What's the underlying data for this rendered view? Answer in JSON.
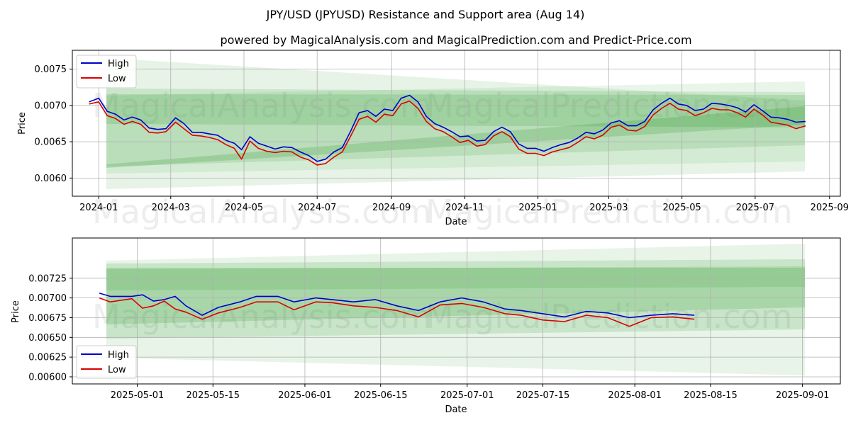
{
  "title": "JPY/USD (JPYUSD) Resistance and Support area (Aug 14)",
  "subtitle": "powered by MagicalAnalysis.com and MagicalPrediction.com and Predict-Price.com",
  "watermarks": {
    "top": [
      "MagicalAnalysis.com",
      "MagicalPrediction.com"
    ],
    "bottom": [
      "MagicalAnalysis.com",
      "MagicalPrediction.com"
    ]
  },
  "colors": {
    "high": "#0000cc",
    "low": "#dd0000",
    "band": "#2e9c2e",
    "grid": "#b0b0b0"
  },
  "chart_data": [
    {
      "type": "line",
      "xlabel": "Date",
      "ylabel": "Price",
      "xlim": [
        "2023-12-10",
        "2025-09-10"
      ],
      "ylim": [
        0.00575,
        0.00776
      ],
      "xticks": [
        "2024-01",
        "2024-03",
        "2024-05",
        "2024-07",
        "2024-09",
        "2024-11",
        "2025-01",
        "2025-03",
        "2025-05",
        "2025-07",
        "2025-09"
      ],
      "xtick_dates": [
        "2024-01-01",
        "2024-03-01",
        "2024-05-01",
        "2024-07-01",
        "2024-09-01",
        "2024-11-01",
        "2025-01-01",
        "2025-03-01",
        "2025-05-01",
        "2025-07-01",
        "2025-09-01"
      ],
      "yticks": [
        "0.0060",
        "0.0065",
        "0.0070",
        "0.0075"
      ],
      "ytick_values": [
        0.006,
        0.0065,
        0.007,
        0.0075
      ],
      "grid": true,
      "legend": "upper left",
      "series": [
        {
          "name": "High",
          "x": [
            "2023-12-24",
            "2024-01-01",
            "2024-01-08",
            "2024-01-15",
            "2024-01-22",
            "2024-01-29",
            "2024-02-05",
            "2024-02-12",
            "2024-02-19",
            "2024-02-26",
            "2024-03-05",
            "2024-03-12",
            "2024-03-19",
            "2024-03-26",
            "2024-04-02",
            "2024-04-09",
            "2024-04-16",
            "2024-04-23",
            "2024-04-29",
            "2024-05-06",
            "2024-05-13",
            "2024-05-20",
            "2024-05-27",
            "2024-06-03",
            "2024-06-10",
            "2024-06-17",
            "2024-06-24",
            "2024-07-01",
            "2024-07-08",
            "2024-07-15",
            "2024-07-22",
            "2024-07-29",
            "2024-08-05",
            "2024-08-12",
            "2024-08-19",
            "2024-08-26",
            "2024-09-02",
            "2024-09-09",
            "2024-09-16",
            "2024-09-23",
            "2024-09-30",
            "2024-10-07",
            "2024-10-14",
            "2024-10-21",
            "2024-10-28",
            "2024-11-04",
            "2024-11-11",
            "2024-11-18",
            "2024-11-25",
            "2024-12-02",
            "2024-12-09",
            "2024-12-16",
            "2024-12-23",
            "2024-12-30",
            "2025-01-06",
            "2025-01-13",
            "2025-01-20",
            "2025-01-27",
            "2025-02-03",
            "2025-02-10",
            "2025-02-17",
            "2025-02-24",
            "2025-03-03",
            "2025-03-10",
            "2025-03-17",
            "2025-03-24",
            "2025-03-31",
            "2025-04-07",
            "2025-04-14",
            "2025-04-21",
            "2025-04-28",
            "2025-05-05",
            "2025-05-12",
            "2025-05-19",
            "2025-05-26",
            "2025-06-02",
            "2025-06-09",
            "2025-06-16",
            "2025-06-23",
            "2025-06-30",
            "2025-07-07",
            "2025-07-14",
            "2025-07-21",
            "2025-07-28",
            "2025-08-04",
            "2025-08-12"
          ],
          "values": [
            0.00705,
            0.0071,
            0.00692,
            0.00688,
            0.0068,
            0.00684,
            0.0068,
            0.00669,
            0.00667,
            0.00668,
            0.00683,
            0.00675,
            0.00663,
            0.00663,
            0.00661,
            0.00659,
            0.00652,
            0.00648,
            0.00639,
            0.00657,
            0.00648,
            0.00644,
            0.0064,
            0.00643,
            0.00642,
            0.00636,
            0.00631,
            0.00623,
            0.00626,
            0.00636,
            0.00642,
            0.00665,
            0.0069,
            0.00693,
            0.00685,
            0.00695,
            0.00693,
            0.0071,
            0.00714,
            0.00705,
            0.00685,
            0.00675,
            0.0067,
            0.00664,
            0.00657,
            0.00658,
            0.00651,
            0.00652,
            0.00664,
            0.0067,
            0.00664,
            0.00647,
            0.00641,
            0.00641,
            0.00637,
            0.00642,
            0.00646,
            0.00649,
            0.00655,
            0.00663,
            0.00661,
            0.00666,
            0.00676,
            0.00679,
            0.00672,
            0.00672,
            0.00678,
            0.00694,
            0.00703,
            0.0071,
            0.00702,
            0.007,
            0.00693,
            0.00695,
            0.00703,
            0.00702,
            0.007,
            0.00697,
            0.00691,
            0.00701,
            0.00693,
            0.00684,
            0.00683,
            0.00681,
            0.00677,
            0.00678
          ]
        },
        {
          "name": "Low",
          "x": [
            "2023-12-24",
            "2024-01-01",
            "2024-01-08",
            "2024-01-15",
            "2024-01-22",
            "2024-01-29",
            "2024-02-05",
            "2024-02-12",
            "2024-02-19",
            "2024-02-26",
            "2024-03-05",
            "2024-03-12",
            "2024-03-19",
            "2024-03-26",
            "2024-04-02",
            "2024-04-09",
            "2024-04-16",
            "2024-04-23",
            "2024-04-29",
            "2024-05-06",
            "2024-05-13",
            "2024-05-20",
            "2024-05-27",
            "2024-06-03",
            "2024-06-10",
            "2024-06-17",
            "2024-06-24",
            "2024-07-01",
            "2024-07-08",
            "2024-07-15",
            "2024-07-22",
            "2024-07-29",
            "2024-08-05",
            "2024-08-12",
            "2024-08-19",
            "2024-08-26",
            "2024-09-02",
            "2024-09-09",
            "2024-09-16",
            "2024-09-23",
            "2024-09-30",
            "2024-10-07",
            "2024-10-14",
            "2024-10-21",
            "2024-10-28",
            "2024-11-04",
            "2024-11-11",
            "2024-11-18",
            "2024-11-25",
            "2024-12-02",
            "2024-12-09",
            "2024-12-16",
            "2024-12-23",
            "2024-12-30",
            "2025-01-06",
            "2025-01-13",
            "2025-01-20",
            "2025-01-27",
            "2025-02-03",
            "2025-02-10",
            "2025-02-17",
            "2025-02-24",
            "2025-03-03",
            "2025-03-10",
            "2025-03-17",
            "2025-03-24",
            "2025-03-31",
            "2025-04-07",
            "2025-04-14",
            "2025-04-21",
            "2025-04-28",
            "2025-05-05",
            "2025-05-12",
            "2025-05-19",
            "2025-05-26",
            "2025-06-02",
            "2025-06-09",
            "2025-06-16",
            "2025-06-23",
            "2025-06-30",
            "2025-07-07",
            "2025-07-14",
            "2025-07-21",
            "2025-07-28",
            "2025-08-04",
            "2025-08-12"
          ],
          "values": [
            0.00702,
            0.00705,
            0.00686,
            0.00682,
            0.00674,
            0.00678,
            0.00674,
            0.00663,
            0.00662,
            0.00664,
            0.00677,
            0.00668,
            0.00659,
            0.00658,
            0.00656,
            0.00653,
            0.00646,
            0.00641,
            0.00626,
            0.00651,
            0.00641,
            0.00637,
            0.00635,
            0.00637,
            0.00636,
            0.00629,
            0.00625,
            0.00618,
            0.0062,
            0.00629,
            0.00636,
            0.00658,
            0.00681,
            0.00685,
            0.00677,
            0.00688,
            0.00686,
            0.00702,
            0.00706,
            0.00696,
            0.00678,
            0.00668,
            0.00664,
            0.00657,
            0.00649,
            0.00652,
            0.00644,
            0.00646,
            0.00658,
            0.00664,
            0.00657,
            0.0064,
            0.00634,
            0.00634,
            0.00631,
            0.00636,
            0.00639,
            0.00642,
            0.00649,
            0.00657,
            0.00654,
            0.00659,
            0.0067,
            0.00673,
            0.00666,
            0.00665,
            0.00671,
            0.00687,
            0.00696,
            0.00703,
            0.00695,
            0.00693,
            0.00686,
            0.0069,
            0.00696,
            0.00694,
            0.00694,
            0.0069,
            0.00684,
            0.00695,
            0.00687,
            0.00677,
            0.00675,
            0.00673,
            0.00668,
            0.00672
          ]
        }
      ]
    },
    {
      "type": "line",
      "xlabel": "Date",
      "ylabel": "Price",
      "xlim": [
        "2025-04-19",
        "2025-09-08"
      ],
      "ylim": [
        0.00591,
        0.00776
      ],
      "xticks": [
        "2025-05-01",
        "2025-05-15",
        "2025-06-01",
        "2025-06-15",
        "2025-07-01",
        "2025-07-15",
        "2025-08-01",
        "2025-08-15",
        "2025-09-01"
      ],
      "xtick_dates": [
        "2025-05-01",
        "2025-05-15",
        "2025-06-01",
        "2025-06-15",
        "2025-07-01",
        "2025-07-15",
        "2025-08-01",
        "2025-08-15",
        "2025-09-01"
      ],
      "yticks": [
        "0.00600",
        "0.00625",
        "0.00650",
        "0.00675",
        "0.00700",
        "0.00725"
      ],
      "ytick_values": [
        0.006,
        0.00625,
        0.0065,
        0.00675,
        0.007,
        0.00725
      ],
      "grid": true,
      "legend": "lower left",
      "series": [
        {
          "name": "High",
          "x": [
            "2025-04-24",
            "2025-04-26",
            "2025-04-30",
            "2025-05-02",
            "2025-05-04",
            "2025-05-06",
            "2025-05-08",
            "2025-05-10",
            "2025-05-13",
            "2025-05-16",
            "2025-05-20",
            "2025-05-23",
            "2025-05-27",
            "2025-05-30",
            "2025-06-03",
            "2025-06-06",
            "2025-06-10",
            "2025-06-14",
            "2025-06-18",
            "2025-06-22",
            "2025-06-26",
            "2025-06-30",
            "2025-07-04",
            "2025-07-08",
            "2025-07-11",
            "2025-07-15",
            "2025-07-19",
            "2025-07-23",
            "2025-07-27",
            "2025-07-31",
            "2025-08-04",
            "2025-08-08",
            "2025-08-12"
          ],
          "values": [
            0.00706,
            0.00702,
            0.00702,
            0.00704,
            0.00696,
            0.00698,
            0.00702,
            0.0069,
            0.00678,
            0.00688,
            0.00695,
            0.00702,
            0.00702,
            0.00695,
            0.007,
            0.00698,
            0.00695,
            0.00698,
            0.0069,
            0.00684,
            0.00695,
            0.007,
            0.00695,
            0.00686,
            0.00684,
            0.0068,
            0.00676,
            0.00683,
            0.00681,
            0.00675,
            0.00678,
            0.0068,
            0.00678
          ]
        },
        {
          "name": "Low",
          "x": [
            "2025-04-24",
            "2025-04-26",
            "2025-04-30",
            "2025-05-02",
            "2025-05-04",
            "2025-05-06",
            "2025-05-08",
            "2025-05-10",
            "2025-05-13",
            "2025-05-16",
            "2025-05-20",
            "2025-05-23",
            "2025-05-27",
            "2025-05-30",
            "2025-06-03",
            "2025-06-06",
            "2025-06-10",
            "2025-06-14",
            "2025-06-18",
            "2025-06-22",
            "2025-06-26",
            "2025-06-30",
            "2025-07-04",
            "2025-07-08",
            "2025-07-11",
            "2025-07-15",
            "2025-07-19",
            "2025-07-23",
            "2025-07-27",
            "2025-07-31",
            "2025-08-04",
            "2025-08-08",
            "2025-08-12"
          ],
          "values": [
            0.007,
            0.00695,
            0.00699,
            0.00687,
            0.0069,
            0.00696,
            0.00686,
            0.00682,
            0.00673,
            0.00681,
            0.00688,
            0.00695,
            0.00695,
            0.00685,
            0.00695,
            0.00694,
            0.0069,
            0.00688,
            0.00684,
            0.00676,
            0.00691,
            0.00693,
            0.00688,
            0.0068,
            0.00678,
            0.00672,
            0.0067,
            0.00678,
            0.00675,
            0.00664,
            0.00675,
            0.00676,
            0.00673
          ]
        }
      ]
    }
  ]
}
